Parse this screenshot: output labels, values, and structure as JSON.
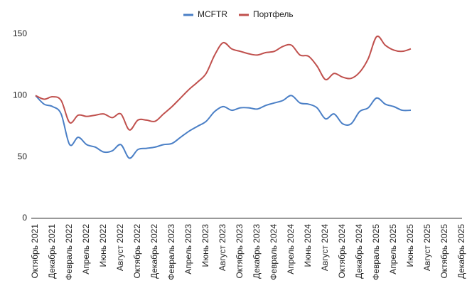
{
  "chart_data": {
    "type": "line",
    "categories": [
      "Октябрь 2021",
      null,
      "Декабрь 2021",
      null,
      "Февраль 2022",
      null,
      "Апрель 2022",
      null,
      "Июнь 2022",
      null,
      "Август 2022",
      null,
      "Октябрь 2022",
      null,
      "Декабрь 2022",
      null,
      "Февраль 2023",
      null,
      "Апрель 2023",
      null,
      "Июнь 2023",
      null,
      "Август 2023",
      null,
      "Октябрь 2023",
      null,
      "Декабрь 2023",
      null,
      "Февраль 2024",
      null,
      "Апрель 2024",
      null,
      "Июнь 2024",
      null,
      "Август 2024",
      null,
      "Октябрь 2024",
      null,
      "Декабрь 2024",
      null,
      "Февраль 2025",
      null,
      "Апрель 2025",
      null,
      "Июнь 2025",
      null,
      "Август 2025",
      null,
      "Октябрь 2025",
      null,
      "Декабрь 2025"
    ],
    "series": [
      {
        "name": "MCFTR",
        "color": "#4a7fc6",
        "values": [
          100,
          93,
          91,
          85,
          60,
          66,
          60,
          58,
          54,
          55,
          60,
          49,
          56,
          57,
          58,
          60,
          61,
          66,
          71,
          75,
          79,
          87,
          91,
          88,
          90,
          90,
          89,
          92,
          94,
          96,
          100,
          94,
          93,
          90,
          81,
          85,
          77,
          77,
          87,
          90,
          98,
          93,
          91,
          88,
          88,
          null,
          null,
          null,
          null,
          null,
          null
        ]
      },
      {
        "name": "Портфель",
        "color": "#c0504d",
        "values": [
          100,
          97,
          99,
          96,
          78,
          84,
          83,
          84,
          85,
          82,
          85,
          72,
          80,
          80,
          79,
          85,
          91,
          98,
          105,
          111,
          118,
          133,
          143,
          138,
          136,
          134,
          133,
          135,
          136,
          140,
          141,
          133,
          132,
          124,
          113,
          118,
          115,
          114,
          119,
          130,
          148,
          141,
          137,
          136,
          138,
          null,
          null,
          null,
          null,
          null,
          null
        ]
      }
    ],
    "ylim": [
      0,
      150
    ],
    "yticks": [
      0,
      50,
      100,
      150
    ],
    "grid": false,
    "legend": "top"
  }
}
